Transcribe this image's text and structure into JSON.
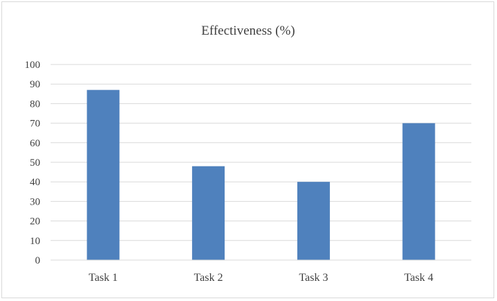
{
  "chart_data": {
    "type": "bar",
    "title": "Effectiveness (%)",
    "categories": [
      "Task 1",
      "Task 2",
      "Task 3",
      "Task 4"
    ],
    "values": [
      87,
      48,
      40,
      70
    ],
    "ylim": [
      0,
      100
    ],
    "yticks": [
      0,
      10,
      20,
      30,
      40,
      50,
      60,
      70,
      80,
      90,
      100
    ],
    "grid": true,
    "bar_color": "#4f81bd",
    "grid_color": "#d9d9d9",
    "text_color": "#404040"
  }
}
